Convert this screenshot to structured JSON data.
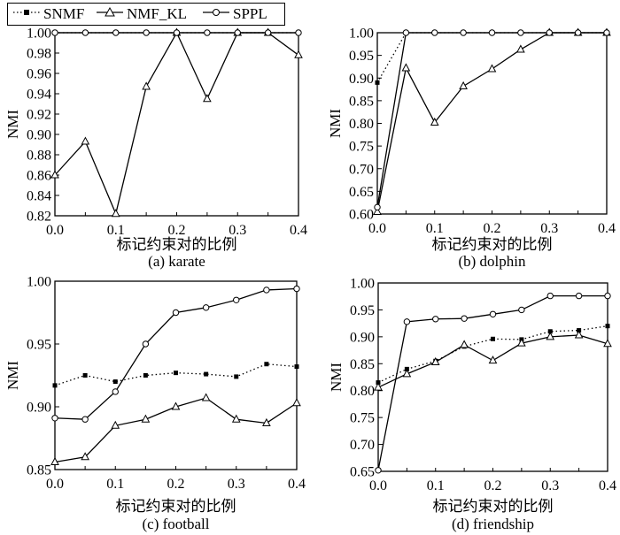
{
  "legend": [
    {
      "name": "SNMF",
      "style": "dotted",
      "marker": "square"
    },
    {
      "name": "NMF_KL",
      "style": "solid",
      "marker": "triangle"
    },
    {
      "name": "SPPL",
      "style": "solid",
      "marker": "circle"
    }
  ],
  "colors": {
    "line": "#000000",
    "background": "#ffffff"
  },
  "chart_data": [
    {
      "type": "line",
      "caption": "(a) karate",
      "xlabel": "标记约束对的比例",
      "ylabel": "NMI",
      "xlim": [
        0,
        0.4
      ],
      "ylim": [
        0.82,
        1.0
      ],
      "xticks": [
        "0.0",
        "0.1",
        "0.2",
        "0.3",
        "0.4"
      ],
      "yticks": [
        "0.82",
        "0.84",
        "0.86",
        "0.88",
        "0.90",
        "0.92",
        "0.94",
        "0.96",
        "0.98",
        "1.00"
      ],
      "x": [
        0,
        0.05,
        0.1,
        0.15,
        0.2,
        0.25,
        0.3,
        0.35,
        0.4
      ],
      "series": [
        {
          "name": "SNMF",
          "values": [
            1.0,
            1.0,
            1.0,
            1.0,
            1.0,
            1.0,
            1.0,
            1.0,
            1.0
          ]
        },
        {
          "name": "NMF_KL",
          "values": [
            0.86,
            0.893,
            0.822,
            0.947,
            1.0,
            0.935,
            1.0,
            1.0,
            0.978
          ]
        },
        {
          "name": "SPPL",
          "values": [
            1.0,
            1.0,
            1.0,
            1.0,
            1.0,
            1.0,
            1.0,
            1.0,
            1.0
          ]
        }
      ]
    },
    {
      "type": "line",
      "caption": "(b) dolphin",
      "xlabel": "标记约束对的比例",
      "ylabel": "NMI",
      "xlim": [
        0,
        0.4
      ],
      "ylim": [
        0.6,
        1.0
      ],
      "xticks": [
        "0.0",
        "0.1",
        "0.2",
        "0.3",
        "0.4"
      ],
      "yticks": [
        "0.60",
        "0.65",
        "0.70",
        "0.75",
        "0.80",
        "0.85",
        "0.90",
        "0.95",
        "1.00"
      ],
      "x": [
        0,
        0.05,
        0.1,
        0.15,
        0.2,
        0.25,
        0.3,
        0.35,
        0.4
      ],
      "series": [
        {
          "name": "SNMF",
          "values": [
            0.89,
            1.0,
            1.0,
            1.0,
            1.0,
            1.0,
            1.0,
            1.0,
            1.0
          ]
        },
        {
          "name": "NMF_KL",
          "values": [
            0.605,
            0.922,
            0.802,
            0.882,
            0.92,
            0.963,
            1.0,
            1.0,
            1.0
          ]
        },
        {
          "name": "SPPL",
          "values": [
            0.615,
            1.0,
            1.0,
            1.0,
            1.0,
            1.0,
            1.0,
            1.0,
            1.0
          ]
        }
      ]
    },
    {
      "type": "line",
      "caption": "(c) football",
      "xlabel": "标记约束对的比例",
      "ylabel": "NMI",
      "xlim": [
        0,
        0.4
      ],
      "ylim": [
        0.85,
        1.0
      ],
      "xticks": [
        "0.0",
        "0.1",
        "0.2",
        "0.3",
        "0.4"
      ],
      "yticks": [
        "0.85",
        "0.90",
        "0.95",
        "1.00"
      ],
      "x": [
        0,
        0.05,
        0.1,
        0.15,
        0.2,
        0.25,
        0.3,
        0.35,
        0.4
      ],
      "series": [
        {
          "name": "SNMF",
          "values": [
            0.917,
            0.925,
            0.92,
            0.925,
            0.927,
            0.926,
            0.924,
            0.934,
            0.932
          ]
        },
        {
          "name": "NMF_KL",
          "values": [
            0.856,
            0.86,
            0.885,
            0.89,
            0.9,
            0.907,
            0.89,
            0.887,
            0.903
          ]
        },
        {
          "name": "SPPL",
          "values": [
            0.891,
            0.89,
            0.912,
            0.95,
            0.975,
            0.979,
            0.985,
            0.993,
            0.994
          ]
        }
      ]
    },
    {
      "type": "line",
      "caption": "(d) friendship",
      "xlabel": "标记约束对的比例",
      "ylabel": "NMI",
      "xlim": [
        0,
        0.4
      ],
      "ylim": [
        0.65,
        1.0
      ],
      "xticks": [
        "0.0",
        "0.1",
        "0.2",
        "0.3",
        "0.4"
      ],
      "yticks": [
        "0.65",
        "0.70",
        "0.75",
        "0.80",
        "0.85",
        "0.90",
        "0.95",
        "1.00"
      ],
      "x": [
        0,
        0.05,
        0.1,
        0.15,
        0.2,
        0.25,
        0.3,
        0.35,
        0.4
      ],
      "series": [
        {
          "name": "SNMF",
          "values": [
            0.815,
            0.84,
            0.855,
            0.882,
            0.896,
            0.895,
            0.91,
            0.912,
            0.92
          ]
        },
        {
          "name": "NMF_KL",
          "values": [
            0.806,
            0.831,
            0.853,
            0.885,
            0.856,
            0.888,
            0.9,
            0.903,
            0.887
          ]
        },
        {
          "name": "SPPL",
          "values": [
            0.652,
            0.928,
            0.933,
            0.934,
            0.942,
            0.95,
            0.976,
            0.976,
            0.976
          ]
        }
      ]
    }
  ]
}
